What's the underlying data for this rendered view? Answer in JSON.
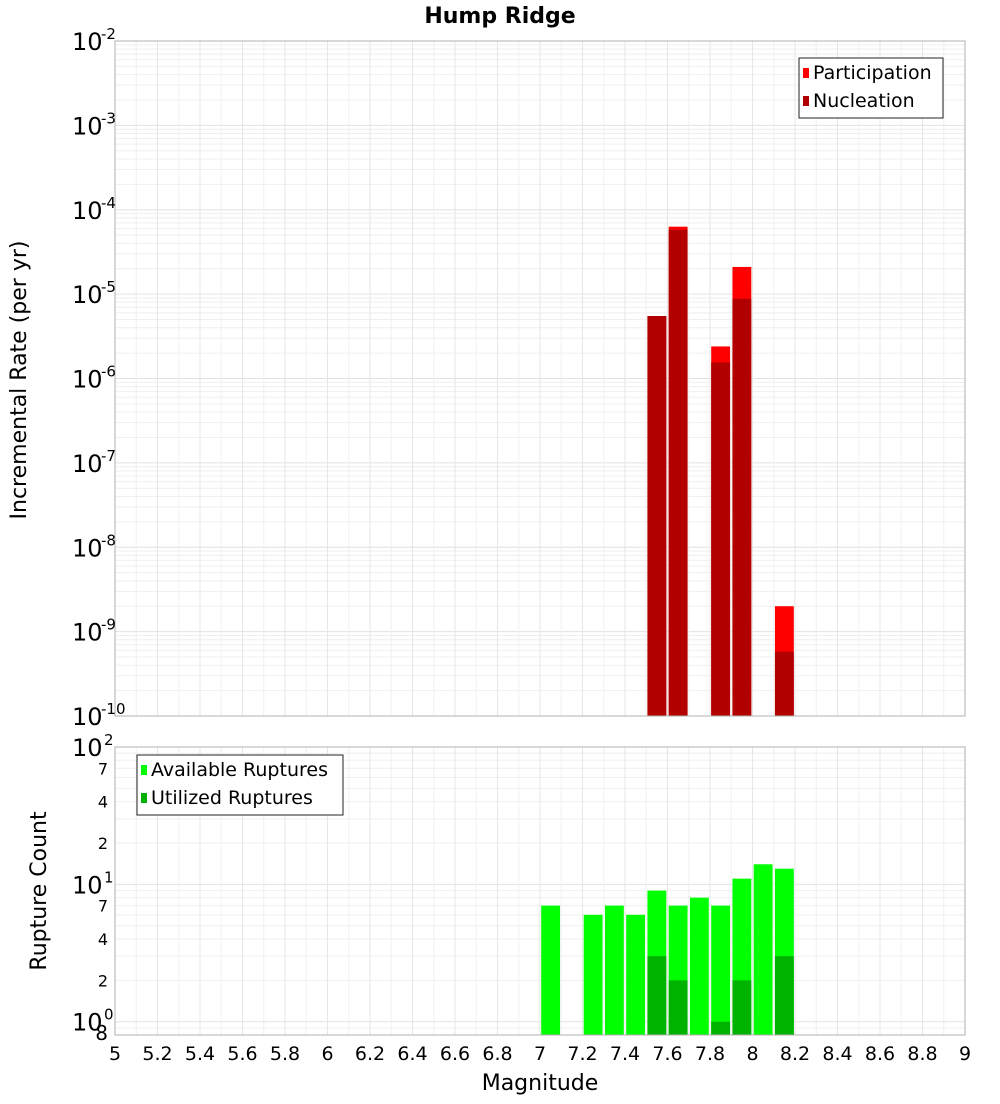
{
  "chart_data": [
    {
      "type": "bar",
      "title": "Hump Ridge",
      "ylabel": "Incremental Rate (per yr)",
      "xlabel": "Magnitude",
      "xlim": [
        5,
        9
      ],
      "ylim": [
        1e-10,
        0.01
      ],
      "yscale": "log",
      "grid": true,
      "legend_position": "top-right",
      "y_tick_exponents": [
        "-2",
        "-3",
        "-4",
        "-5",
        "-6",
        "-7",
        "-8",
        "-9",
        "-10"
      ],
      "series": [
        {
          "name": "Participation",
          "color": "#ff0000",
          "points": [
            {
              "x": 7.55,
              "y": 5.5e-06
            },
            {
              "x": 7.65,
              "y": 6.3e-05
            },
            {
              "x": 7.85,
              "y": 2.4e-06
            },
            {
              "x": 7.95,
              "y": 2.1e-05
            },
            {
              "x": 8.15,
              "y": 2e-09
            }
          ]
        },
        {
          "name": "Nucleation",
          "color": "#b20000",
          "points": [
            {
              "x": 7.55,
              "y": 5.5e-06
            },
            {
              "x": 7.65,
              "y": 5.8e-05
            },
            {
              "x": 7.85,
              "y": 1.55e-06
            },
            {
              "x": 7.95,
              "y": 8.8e-06
            },
            {
              "x": 8.15,
              "y": 5.8e-10
            }
          ]
        }
      ]
    },
    {
      "type": "bar",
      "ylabel": "Rupture Count",
      "xlabel": "Magnitude",
      "xlim": [
        5,
        9
      ],
      "ylim": [
        0.8,
        100
      ],
      "yscale": "log",
      "grid": true,
      "legend_position": "top-left",
      "x_ticks": [
        "5",
        "5.2",
        "5.4",
        "5.6",
        "5.8",
        "6",
        "6.2",
        "6.4",
        "6.6",
        "6.8",
        "7",
        "7.2",
        "7.4",
        "7.6",
        "7.8",
        "8",
        "8.2",
        "8.4",
        "8.6",
        "8.8",
        "9"
      ],
      "series": [
        {
          "name": "Available Ruptures",
          "color": "#00ff00",
          "points": [
            {
              "x": 7.05,
              "y": 7
            },
            {
              "x": 7.25,
              "y": 6
            },
            {
              "x": 7.35,
              "y": 7
            },
            {
              "x": 7.45,
              "y": 6
            },
            {
              "x": 7.55,
              "y": 9
            },
            {
              "x": 7.65,
              "y": 7
            },
            {
              "x": 7.75,
              "y": 8
            },
            {
              "x": 7.85,
              "y": 7
            },
            {
              "x": 7.95,
              "y": 11
            },
            {
              "x": 8.05,
              "y": 14
            },
            {
              "x": 8.15,
              "y": 13
            }
          ]
        },
        {
          "name": "Utilized Ruptures",
          "color": "#00b200",
          "points": [
            {
              "x": 7.55,
              "y": 3
            },
            {
              "x": 7.65,
              "y": 2
            },
            {
              "x": 7.85,
              "y": 1
            },
            {
              "x": 7.95,
              "y": 2
            },
            {
              "x": 8.15,
              "y": 3
            }
          ]
        }
      ]
    }
  ],
  "rate_axis_base": "10",
  "count_axis": {
    "base_tick_labels": [
      {
        "value": 100,
        "base": "10",
        "exp": "2"
      },
      {
        "value": 10,
        "base": "10",
        "exp": "1"
      },
      {
        "value": 1,
        "base": "10",
        "exp": "0"
      }
    ],
    "minor_tick_labels": [
      {
        "value": 70,
        "label": "7"
      },
      {
        "value": 40,
        "label": "4"
      },
      {
        "value": 20,
        "label": "2"
      },
      {
        "value": 7,
        "label": "7"
      },
      {
        "value": 4,
        "label": "4"
      },
      {
        "value": 2,
        "label": "2"
      },
      {
        "value": 0.8,
        "label": "8"
      }
    ]
  }
}
